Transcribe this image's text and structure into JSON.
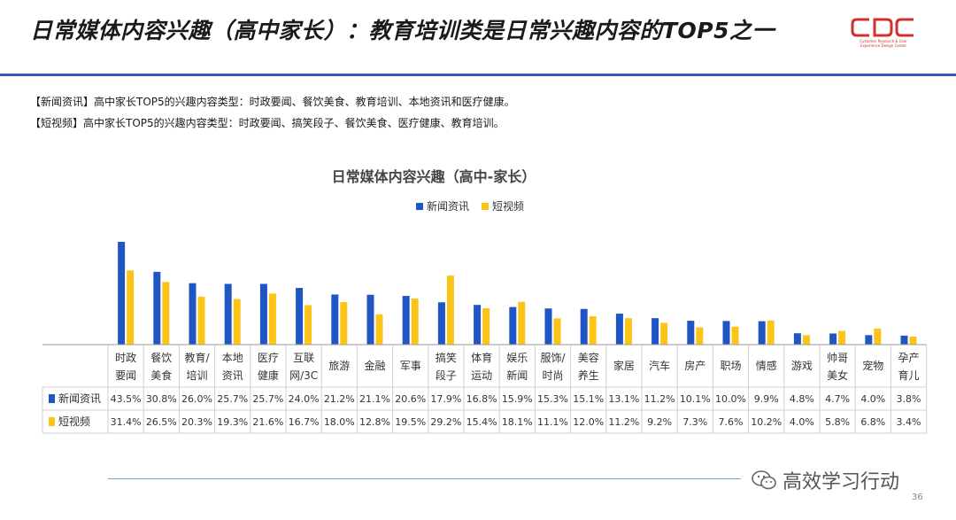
{
  "header": {
    "title": "日常媒体内容兴趣（高中家长）：教育培训类是日常兴趣内容的TOP5之一",
    "logo_text": "CDC",
    "logo_subtitle": "Customer Research & User Experience Design Center"
  },
  "notes": [
    "【新闻资讯】高中家长TOP5的兴趣内容类型：时政要闻、餐饮美食、教育培训、本地资讯和医疗健康。",
    "【短视频】高中家长TOP5的兴趣内容类型：时政要闻、搞笑段子、餐饮美食、医疗健康、教育培训。"
  ],
  "colors": {
    "accent": "#1f56c4",
    "series1": "#1f56c4",
    "series2": "#fcc419",
    "rule": "#2b5bb5"
  },
  "chart_data": {
    "type": "bar",
    "title": "日常媒体内容兴趣（高中-家长）",
    "categories": [
      [
        "时政",
        "要闻"
      ],
      [
        "餐饮",
        "美食"
      ],
      [
        "教育/",
        "培训"
      ],
      [
        "本地",
        "资讯"
      ],
      [
        "医疗",
        "健康"
      ],
      [
        "互联",
        "网/3C"
      ],
      [
        "旅游"
      ],
      [
        "金融"
      ],
      [
        "军事"
      ],
      [
        "搞笑",
        "段子"
      ],
      [
        "体育",
        "运动"
      ],
      [
        "娱乐",
        "新闻"
      ],
      [
        "服饰/",
        "时尚"
      ],
      [
        "美容",
        "养生"
      ],
      [
        "家居"
      ],
      [
        "汽车"
      ],
      [
        "房产"
      ],
      [
        "职场"
      ],
      [
        "情感"
      ],
      [
        "游戏"
      ],
      [
        "帅哥",
        "美女"
      ],
      [
        "宠物"
      ],
      [
        "孕产",
        "育儿"
      ]
    ],
    "series": [
      {
        "name": "新闻资讯",
        "values": [
          43.5,
          30.8,
          26.0,
          25.7,
          25.7,
          24.0,
          21.2,
          21.1,
          20.6,
          17.9,
          16.8,
          15.9,
          15.3,
          15.1,
          13.1,
          11.2,
          10.1,
          10.0,
          9.9,
          4.8,
          4.7,
          4.0,
          3.8
        ],
        "labels": [
          "43.5%",
          "30.8%",
          "26.0%",
          "25.7%",
          "25.7%",
          "24.0%",
          "21.2%",
          "21.1%",
          "20.6%",
          "17.9%",
          "16.8%",
          "15.9%",
          "15.3%",
          "15.1%",
          "13.1%",
          "11.2%",
          "10.1%",
          "10.0%",
          "9.9%",
          "4.8%",
          "4.7%",
          "4.0%",
          "3.8%"
        ]
      },
      {
        "name": "短视频",
        "values": [
          31.4,
          26.5,
          20.3,
          19.3,
          21.6,
          16.7,
          18.0,
          12.8,
          19.5,
          29.2,
          15.4,
          18.1,
          11.1,
          12.0,
          11.2,
          9.2,
          7.3,
          7.6,
          10.2,
          4.0,
          5.8,
          6.8,
          3.4
        ],
        "labels": [
          "31.4%",
          "26.5%",
          "20.3%",
          "19.3%",
          "21.6%",
          "16.7%",
          "18.0%",
          "12.8%",
          "19.5%",
          "29.2%",
          "15.4%",
          "18.1%",
          "11.1%",
          "12.0%",
          "11.2%",
          "9.2%",
          "7.3%",
          "7.6%",
          "10.2%",
          "4.0%",
          "5.8%",
          "6.8%",
          "3.4%"
        ]
      }
    ],
    "ylim": [
      0,
      45
    ],
    "legend_position": "top-center",
    "grid": false
  },
  "footer": {
    "watermark": "高效学习行动",
    "page": "36"
  }
}
